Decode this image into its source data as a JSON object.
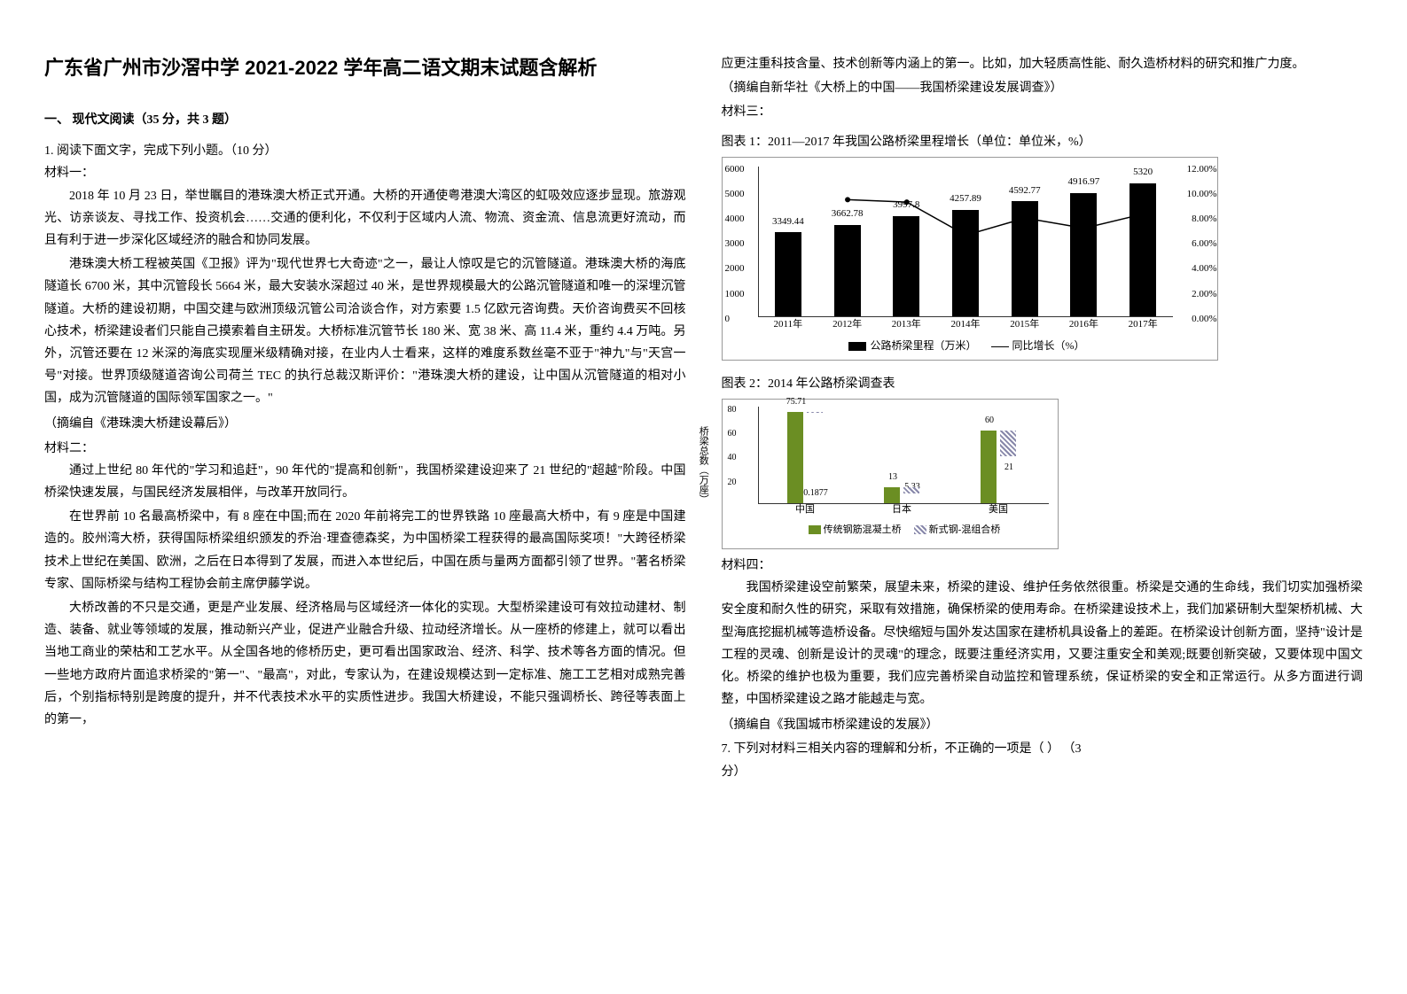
{
  "title": "广东省广州市沙滘中学 2021-2022 学年高二语文期末试题含解析",
  "section1": "一、 现代文阅读（35 分，共 3 题）",
  "q1": "1. 阅读下面文字，完成下列小题。（10 分）",
  "mat1_label": "材料一：",
  "mat1_p1": "2018 年 10 月 23 日，举世瞩目的港珠澳大桥正式开通。大桥的开通使粤港澳大湾区的虹吸效应逐步显现。旅游观光、访亲谈友、寻找工作、投资机会……交通的便利化，不仅利于区域内人流、物流、资金流、信息流更好流动，而且有利于进一步深化区域经济的融合和协同发展。",
  "mat1_p2": "港珠澳大桥工程被英国《卫报》评为\"现代世界七大奇迹\"之一，最让人惊叹是它的沉管隧道。港珠澳大桥的海底隧道长 6700 米，其中沉管段长 5664 米，最大安装水深超过 40 米，是世界规模最大的公路沉管隧道和唯一的深埋沉管隧道。大桥的建设初期，中国交建与欧洲顶级沉管公司洽谈合作，对方索要 1.5 亿欧元咨询费。天价咨询费买不回核心技术，桥梁建设者们只能自己摸索着自主研发。大桥标准沉管节长 180 米、宽 38 米、高 11.4 米，重约 4.4 万吨。另外，沉管还要在 12 米深的海底实现厘米级精确对接，在业内人士看来，这样的难度系数丝毫不亚于\"神九\"与\"天宫一号\"对接。世界顶级隧道咨询公司荷兰 TEC 的执行总裁汉斯评价：\"港珠澳大桥的建设，让中国从沉管隧道的相对小国，成为沉管隧道的国际领军国家之一。\"",
  "mat1_src": "（摘编自《港珠澳大桥建设幕后》）",
  "mat2_label": "材料二：",
  "mat2_p1": "通过上世纪 80 年代的\"学习和追赶\"，90 年代的\"提高和创新\"，我国桥梁建设迎来了 21 世纪的\"超越\"阶段。中国桥梁快速发展，与国民经济发展相伴，与改革开放同行。",
  "mat2_p2": "在世界前 10 名最高桥梁中，有 8 座在中国;而在 2020 年前将完工的世界铁路 10 座最高大桥中，有 9 座是中国建造的。胶州湾大桥，获得国际桥梁组织颁发的乔治·理查德森奖，为中国桥梁工程获得的最高国际奖项！\"大跨径桥梁技术上世纪在美国、欧洲，之后在日本得到了发展，而进入本世纪后，中国在质与量两方面都引领了世界。\"著名桥梁专家、国际桥梁与结构工程协会前主席伊藤学说。",
  "mat2_p3": "大桥改善的不只是交通，更是产业发展、经济格局与区域经济一体化的实现。大型桥梁建设可有效拉动建材、制造、装备、就业等领域的发展，推动新兴产业，促进产业融合升级、拉动经济增长。从一座桥的修建上，就可以看出当地工商业的荣枯和工艺水平。从全国各地的修桥历史，更可看出国家政治、经济、科学、技术等各方面的情况。但一些地方政府片面追求桥梁的\"第一\"、\"最高\"，对此，专家认为，在建设规模达到一定标准、施工工艺相对成熟完善后，个别指标特别是跨度的提升，并不代表技术水平的实质性进步。我国大桥建设，不能只强调桥长、跨径等表面上的第一，",
  "mat2_cont": "应更注重科技含量、技术创新等内涵上的第一。比如，加大轻质高性能、耐久造桥材料的研究和推广力度。",
  "mat2_src": "（摘编自新华社《大桥上的中国——我国桥梁建设发展调查》）",
  "mat3_label": "材料三：",
  "chart1_caption": "图表 1：2011—2017 年我国公路桥梁里程增长（单位：单位米，%）",
  "chart1": {
    "type": "bar+line",
    "years": [
      "2011年",
      "2012年",
      "2013年",
      "2014年",
      "2015年",
      "2016年",
      "2017年"
    ],
    "bar_values": [
      3349.44,
      3662.78,
      3997.8,
      4257.89,
      4592.77,
      4916.97,
      5320
    ],
    "bar_color": "#000000",
    "yleft_ticks": [
      0,
      1000,
      2000,
      3000,
      4000,
      5000,
      6000
    ],
    "yleft_max": 6000,
    "line_pct_approx": [
      0,
      9.35,
      9.15,
      6.5,
      7.87,
      7.06,
      8.2
    ],
    "yright_ticks": [
      "0.00%",
      "2.00%",
      "4.00%",
      "6.00%",
      "8.00%",
      "10.00%",
      "12.00%"
    ],
    "yright_max": 12,
    "legend_bar": "公路桥梁里程（万米）",
    "legend_line": "同比增长（%）",
    "background_color": "#ffffff",
    "font_size": 11
  },
  "chart2_caption": "图表 2：2014 年公路桥梁调查表",
  "chart2": {
    "type": "grouped-bar",
    "axis_title": "桥梁总数（万座）",
    "categories": [
      "中国",
      "日本",
      "美国"
    ],
    "series": [
      {
        "name": "传统钢筋混凝土桥",
        "color": "#6b8e23",
        "values": [
          75.71,
          13,
          60
        ]
      },
      {
        "name": "新式钢-混组合桥",
        "color_pattern": "hatch",
        "values": [
          0.1877,
          5.33,
          21
        ]
      }
    ],
    "y_ticks": [
      20,
      40,
      60,
      80
    ],
    "y_max": 80,
    "legend1": "传统钢筋混凝土桥",
    "legend2": "新式钢-混组合桥",
    "font_size": 11
  },
  "mat4_label": "材料四：",
  "mat4_p1": "我国桥梁建设空前繁荣，展望未来，桥梁的建设、维护任务依然很重。桥梁是交通的生命线，我们切实加强桥梁安全度和耐久性的研究，采取有效措施，确保桥梁的使用寿命。在桥梁建设技术上，我们加紧研制大型架桥机械、大型海底挖掘机械等造桥设备。尽快缩短与国外发达国家在建桥机具设备上的差距。在桥梁设计创新方面，坚持\"设计是工程的灵魂、创新是设计的灵魂\"的理念，既要注重经济实用，又要注重安全和美观;既要创新突破，又要体现中国文化。桥梁的维护也极为重要，我们应完善桥梁自动监控和管理系统，保证桥梁的安全和正常运行。从多方面进行调整，中国桥梁建设之路才能越走与宽。",
  "mat4_src": "（摘编自《我国城市桥梁建设的发展》）",
  "q7": "7. 下列对材料三相关内容的理解和分析，不正确的一项是（         ）     （3",
  "q7b": "分）"
}
